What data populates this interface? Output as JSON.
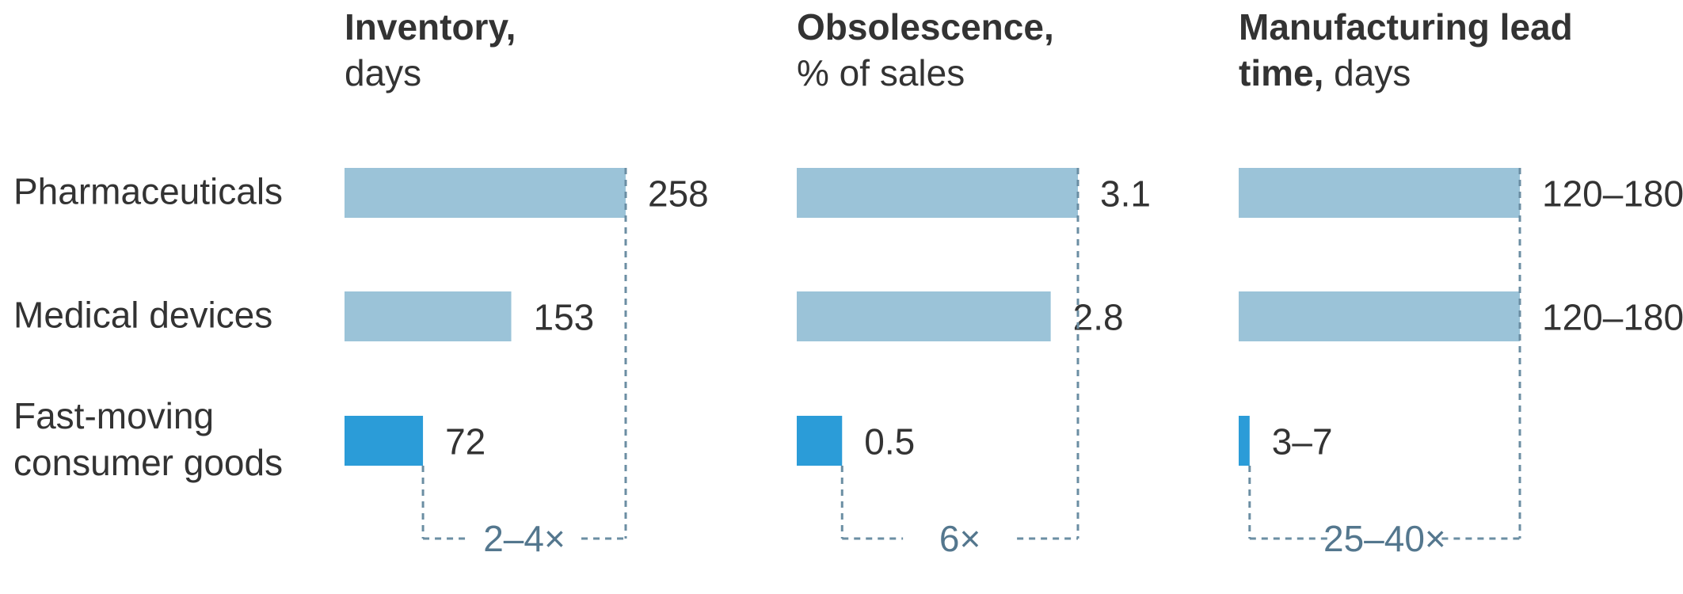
{
  "chart_data": [
    {
      "type": "bar",
      "title_bold": "Inventory,",
      "title_rest": "days",
      "categories": [
        "Pharmaceuticals",
        "Medical devices",
        "Fast-moving consumer goods"
      ],
      "values": [
        258,
        153,
        72
      ],
      "value_labels": [
        "258",
        "153",
        "72"
      ],
      "xlim": [
        0,
        258
      ],
      "bracket_label": "2–4×"
    },
    {
      "type": "bar",
      "title_bold": "Obsolescence,",
      "title_rest": "% of sales",
      "categories": [
        "Pharmaceuticals",
        "Medical devices",
        "Fast-moving consumer goods"
      ],
      "values": [
        3.1,
        2.8,
        0.5
      ],
      "value_labels": [
        "3.1",
        "2.8",
        "0.5"
      ],
      "xlim": [
        0,
        3.1
      ],
      "bracket_label": "6×"
    },
    {
      "type": "bar",
      "title_bold": "Manufacturing lead time,",
      "title_rest": "days",
      "categories": [
        "Pharmaceuticals",
        "Medical devices",
        "Fast-moving consumer goods"
      ],
      "values": [
        180,
        180,
        7
      ],
      "value_labels": [
        "120–180",
        "120–180",
        "3–7"
      ],
      "xlim": [
        0,
        180
      ],
      "bracket_label": "25–40×"
    }
  ],
  "row_labels": [
    [
      "Pharmaceuticals"
    ],
    [
      "Medical devices"
    ],
    [
      "Fast-moving",
      "consumer goods"
    ]
  ],
  "colors": {
    "bar_light": "#9bc3d8",
    "bar_highlight": "#2b9cd8",
    "bracket": "#6b8ea3",
    "text": "#333333",
    "bracket_text": "#54778e"
  }
}
